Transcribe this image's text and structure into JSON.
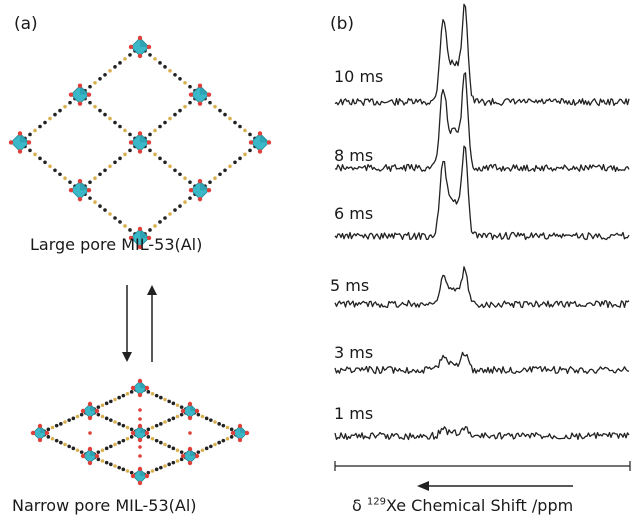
{
  "panel_a": {
    "label": "(a)",
    "large_pore_caption": "Large pore MIL-53(Al)",
    "narrow_pore_caption": "Narrow pore MIL-53(Al)"
  },
  "panel_b": {
    "label": "(b)",
    "traces": [
      {
        "label": "10 ms",
        "peak": 1.0
      },
      {
        "label": "8 ms",
        "peak": 0.95
      },
      {
        "label": "6 ms",
        "peak": 0.9
      },
      {
        "label": "5 ms",
        "peak": 0.35
      },
      {
        "label": "3 ms",
        "peak": 0.18
      },
      {
        "label": "1 ms",
        "peak": 0.08
      }
    ],
    "axis_label_prefix": "δ ",
    "axis_label_sup": "129",
    "axis_label_rest": "Xe Chemical Shift /ppm"
  },
  "colors": {
    "octahedron": "#3bb8c8",
    "octahedron_dark": "#1f8a99",
    "node": "#e0403a",
    "linker": "#222222",
    "linker_accent": "#d8b050"
  }
}
